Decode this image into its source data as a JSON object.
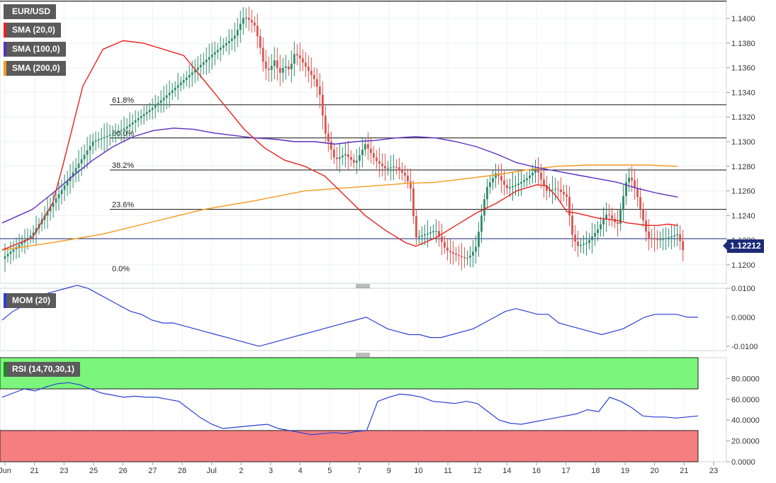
{
  "chart_data": {
    "type": "candlestick",
    "symbol": "EUR/USD",
    "current_price_label": "1.12212",
    "price_axis": {
      "ylim": [
        1.1185,
        1.1415
      ],
      "ticks": [
        "1.1200",
        "1.1220",
        "1.1240",
        "1.1260",
        "1.1280",
        "1.1300",
        "1.1320",
        "1.1340",
        "1.1360",
        "1.1380",
        "1.1400"
      ]
    },
    "x_axis": {
      "labels": [
        "Jun",
        "21",
        "23",
        "25",
        "26",
        "27",
        "28",
        "Jul",
        "2",
        "3",
        "4",
        "5",
        "7",
        "9",
        "10",
        "11",
        "12",
        "14",
        "16",
        "17",
        "18",
        "19",
        "20",
        "21",
        "23"
      ]
    },
    "legend": [
      {
        "label": "EUR/USD",
        "color": "#5b5b5b"
      },
      {
        "label": "SMA (20,0)",
        "color": "#e8231f"
      },
      {
        "label": "SMA (100,0)",
        "color": "#5a2fc2"
      },
      {
        "label": "SMA (200,0)",
        "color": "#f49a1e"
      }
    ],
    "fibonacci": [
      {
        "label": "61.8%",
        "value": 1.133
      },
      {
        "label": "50.0%",
        "value": 1.1303
      },
      {
        "label": "38.2%",
        "value": 1.1277
      },
      {
        "label": "23.6%",
        "value": 1.1245
      },
      {
        "label": "0.0%",
        "value": 1.1193
      }
    ],
    "top_line": 1.1414,
    "current_line": 1.12212,
    "close_path": [
      [
        0,
        1.1205
      ],
      [
        3,
        1.1225
      ],
      [
        6,
        1.1262
      ],
      [
        9,
        1.13
      ],
      [
        12,
        1.131
      ],
      [
        15,
        1.1328
      ],
      [
        18,
        1.135
      ],
      [
        21,
        1.1372
      ],
      [
        23,
        1.1385
      ],
      [
        24,
        1.1402
      ],
      [
        25,
        1.1395
      ],
      [
        25.5,
        1.138
      ],
      [
        26,
        1.136
      ],
      [
        26.5,
        1.1358
      ],
      [
        27,
        1.1366
      ],
      [
        27.5,
        1.1355
      ],
      [
        28,
        1.1362
      ],
      [
        28.5,
        1.1358
      ],
      [
        29,
        1.1372
      ],
      [
        29.5,
        1.1368
      ],
      [
        30,
        1.1362
      ],
      [
        31,
        1.135
      ],
      [
        31.5,
        1.1338
      ],
      [
        32,
        1.1308
      ],
      [
        33,
        1.1285
      ],
      [
        34,
        1.129
      ],
      [
        35,
        1.1282
      ],
      [
        36,
        1.1298
      ],
      [
        37,
        1.1285
      ],
      [
        38,
        1.1278
      ],
      [
        39,
        1.128
      ],
      [
        40,
        1.1272
      ],
      [
        40.5,
        1.1262
      ],
      [
        41,
        1.1222
      ],
      [
        42,
        1.1225
      ],
      [
        43,
        1.1228
      ],
      [
        44,
        1.1212
      ],
      [
        45,
        1.1208
      ],
      [
        46,
        1.1205
      ],
      [
        46.5,
        1.1208
      ],
      [
        47,
        1.1215
      ],
      [
        48,
        1.1262
      ],
      [
        49,
        1.1275
      ],
      [
        50,
        1.1262
      ],
      [
        51,
        1.1265
      ],
      [
        52,
        1.127
      ],
      [
        53,
        1.1278
      ],
      [
        53.5,
        1.1268
      ],
      [
        54,
        1.126
      ],
      [
        55,
        1.1262
      ],
      [
        56,
        1.1255
      ],
      [
        56.5,
        1.1225
      ],
      [
        57,
        1.1215
      ],
      [
        58,
        1.1218
      ],
      [
        59,
        1.1228
      ],
      [
        60,
        1.1242
      ],
      [
        61,
        1.1232
      ],
      [
        62,
        1.1272
      ],
      [
        62.5,
        1.1268
      ],
      [
        63,
        1.1255
      ],
      [
        63.5,
        1.1238
      ],
      [
        64,
        1.1222
      ],
      [
        65,
        1.122
      ],
      [
        66,
        1.1222
      ],
      [
        67,
        1.1225
      ],
      [
        67.5,
        1.1212
      ]
    ],
    "x_domain": [
      0,
      69
    ],
    "sma20_path": [
      [
        0,
        1.1212
      ],
      [
        3,
        1.1222
      ],
      [
        5,
        1.125
      ],
      [
        6,
        1.128
      ],
      [
        8,
        1.1345
      ],
      [
        10,
        1.1375
      ],
      [
        12,
        1.1382
      ],
      [
        14,
        1.138
      ],
      [
        16,
        1.1375
      ],
      [
        18,
        1.137
      ],
      [
        20,
        1.135
      ],
      [
        22,
        1.133
      ],
      [
        24,
        1.131
      ],
      [
        26,
        1.1295
      ],
      [
        28,
        1.1285
      ],
      [
        30,
        1.128
      ],
      [
        32,
        1.1272
      ],
      [
        34,
        1.1256
      ],
      [
        36,
        1.124
      ],
      [
        38,
        1.1228
      ],
      [
        40,
        1.1218
      ],
      [
        41,
        1.1215
      ],
      [
        43,
        1.1222
      ],
      [
        45,
        1.1232
      ],
      [
        47,
        1.1242
      ],
      [
        49,
        1.125
      ],
      [
        51,
        1.126
      ],
      [
        53,
        1.1265
      ],
      [
        54,
        1.1264
      ],
      [
        55,
        1.1255
      ],
      [
        56,
        1.1243
      ],
      [
        57,
        1.1242
      ],
      [
        58,
        1.124
      ],
      [
        59,
        1.1238
      ],
      [
        60,
        1.1237
      ],
      [
        61,
        1.1236
      ],
      [
        62,
        1.1234
      ],
      [
        63,
        1.1233
      ],
      [
        64,
        1.1232
      ],
      [
        65,
        1.1232
      ],
      [
        66,
        1.1233
      ],
      [
        67,
        1.1232
      ]
    ],
    "sma100_path": [
      [
        0,
        1.1234
      ],
      [
        3,
        1.1245
      ],
      [
        5,
        1.1258
      ],
      [
        7,
        1.1272
      ],
      [
        9,
        1.1285
      ],
      [
        11,
        1.1296
      ],
      [
        13,
        1.1304
      ],
      [
        15,
        1.1309
      ],
      [
        17,
        1.1311
      ],
      [
        19,
        1.131
      ],
      [
        21,
        1.1307
      ],
      [
        23,
        1.1305
      ],
      [
        25,
        1.1303
      ],
      [
        27,
        1.1302
      ],
      [
        29,
        1.13
      ],
      [
        31,
        1.13
      ],
      [
        33,
        1.1298
      ],
      [
        35,
        1.13
      ],
      [
        37,
        1.1301
      ],
      [
        39,
        1.1303
      ],
      [
        41,
        1.1304
      ],
      [
        43,
        1.1303
      ],
      [
        45,
        1.13
      ],
      [
        47,
        1.1296
      ],
      [
        49,
        1.129
      ],
      [
        51,
        1.1283
      ],
      [
        53,
        1.1279
      ],
      [
        55,
        1.1276
      ],
      [
        57,
        1.1273
      ],
      [
        59,
        1.127
      ],
      [
        61,
        1.1267
      ],
      [
        63,
        1.1262
      ],
      [
        65,
        1.1258
      ],
      [
        67,
        1.1255
      ]
    ],
    "sma200_path": [
      [
        0,
        1.1212
      ],
      [
        5,
        1.1218
      ],
      [
        10,
        1.1225
      ],
      [
        15,
        1.1235
      ],
      [
        20,
        1.1245
      ],
      [
        25,
        1.1252
      ],
      [
        30,
        1.126
      ],
      [
        35,
        1.1263
      ],
      [
        40,
        1.1266
      ],
      [
        43,
        1.1267
      ],
      [
        46,
        1.127
      ],
      [
        49,
        1.1273
      ],
      [
        52,
        1.1277
      ],
      [
        55,
        1.128
      ],
      [
        58,
        1.1281
      ],
      [
        61,
        1.1281
      ],
      [
        64,
        1.1281
      ],
      [
        67,
        1.128
      ]
    ],
    "mom": {
      "label": "MOM (20)",
      "ylim": [
        -0.0115,
        0.01
      ],
      "ticks": [
        "0.0100",
        "0.0000",
        "-0.0100"
      ],
      "tick_values": [
        0.01,
        0.0,
        -0.01
      ],
      "values": [
        -0.001,
        0.002,
        0.004,
        0.006,
        0.008,
        0.009,
        0.01,
        0.011,
        0.01,
        0.008,
        0.006,
        0.004,
        0.002,
        0.001,
        -0.001,
        -0.002,
        -0.002,
        -0.003,
        -0.004,
        -0.005,
        -0.006,
        -0.007,
        -0.008,
        -0.009,
        -0.01,
        -0.009,
        -0.008,
        -0.007,
        -0.006,
        -0.005,
        -0.004,
        -0.003,
        -0.002,
        -0.001,
        0.0,
        -0.002,
        -0.004,
        -0.005,
        -0.006,
        -0.006,
        -0.007,
        -0.007,
        -0.006,
        -0.005,
        -0.004,
        -0.002,
        0.0,
        0.002,
        0.003,
        0.002,
        0.001,
        0.001,
        -0.002,
        -0.003,
        -0.004,
        -0.005,
        -0.006,
        -0.005,
        -0.004,
        -0.002,
        0.0,
        0.001,
        0.001,
        0.001,
        0.0,
        0.0
      ]
    },
    "rsi": {
      "label": "RSI (14,70,30,1)",
      "ylim": [
        0,
        100
      ],
      "ticks": [
        "80.0000",
        "60.0000",
        "40.0000",
        "20.0000",
        "0.0000"
      ],
      "tick_values": [
        80,
        60,
        40,
        20,
        0
      ],
      "overbought": 70,
      "oversold": 30,
      "values": [
        62,
        66,
        70,
        68,
        72,
        75,
        76,
        74,
        70,
        66,
        64,
        62,
        63,
        62,
        62,
        60,
        58,
        50,
        42,
        36,
        32,
        33,
        34,
        35,
        36,
        32,
        30,
        28,
        26,
        27,
        28,
        27,
        29,
        30,
        58,
        62,
        65,
        64,
        62,
        58,
        57,
        56,
        58,
        56,
        48,
        40,
        37,
        36,
        38,
        40,
        42,
        44,
        46,
        50,
        48,
        62,
        58,
        52,
        44,
        43,
        43,
        42,
        43,
        44
      ]
    }
  }
}
